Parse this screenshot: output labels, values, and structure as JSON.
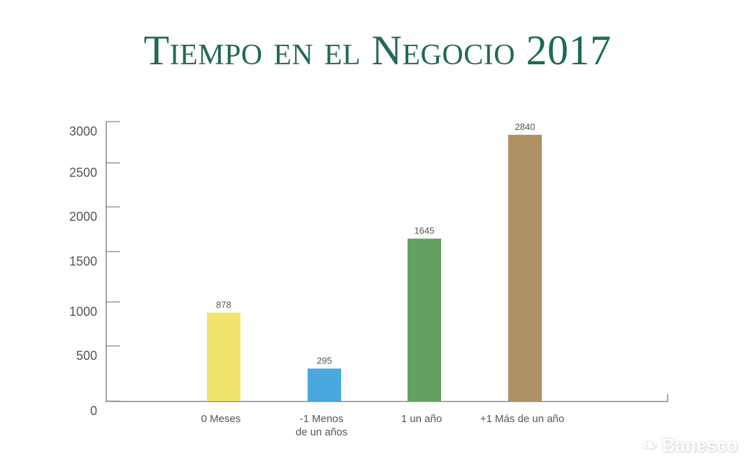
{
  "chart_data": {
    "type": "bar",
    "title": "Tiempo en el Negocio 2017",
    "categories": [
      [
        "0 Meses"
      ],
      [
        "-1 Menos",
        "de un años"
      ],
      [
        "1 un año"
      ],
      [
        "+1 Más de un año"
      ]
    ],
    "values": [
      878,
      295,
      1645,
      2840
    ],
    "colors": [
      "#f0e46e",
      "#4aa8e0",
      "#63a062",
      "#b09163"
    ],
    "yticks": [
      0,
      500,
      1000,
      1500,
      2000,
      2500,
      3000
    ],
    "ylim": [
      0,
      3000
    ],
    "xlabel": "",
    "ylabel": "",
    "grid": false
  },
  "watermark": "Banesco"
}
